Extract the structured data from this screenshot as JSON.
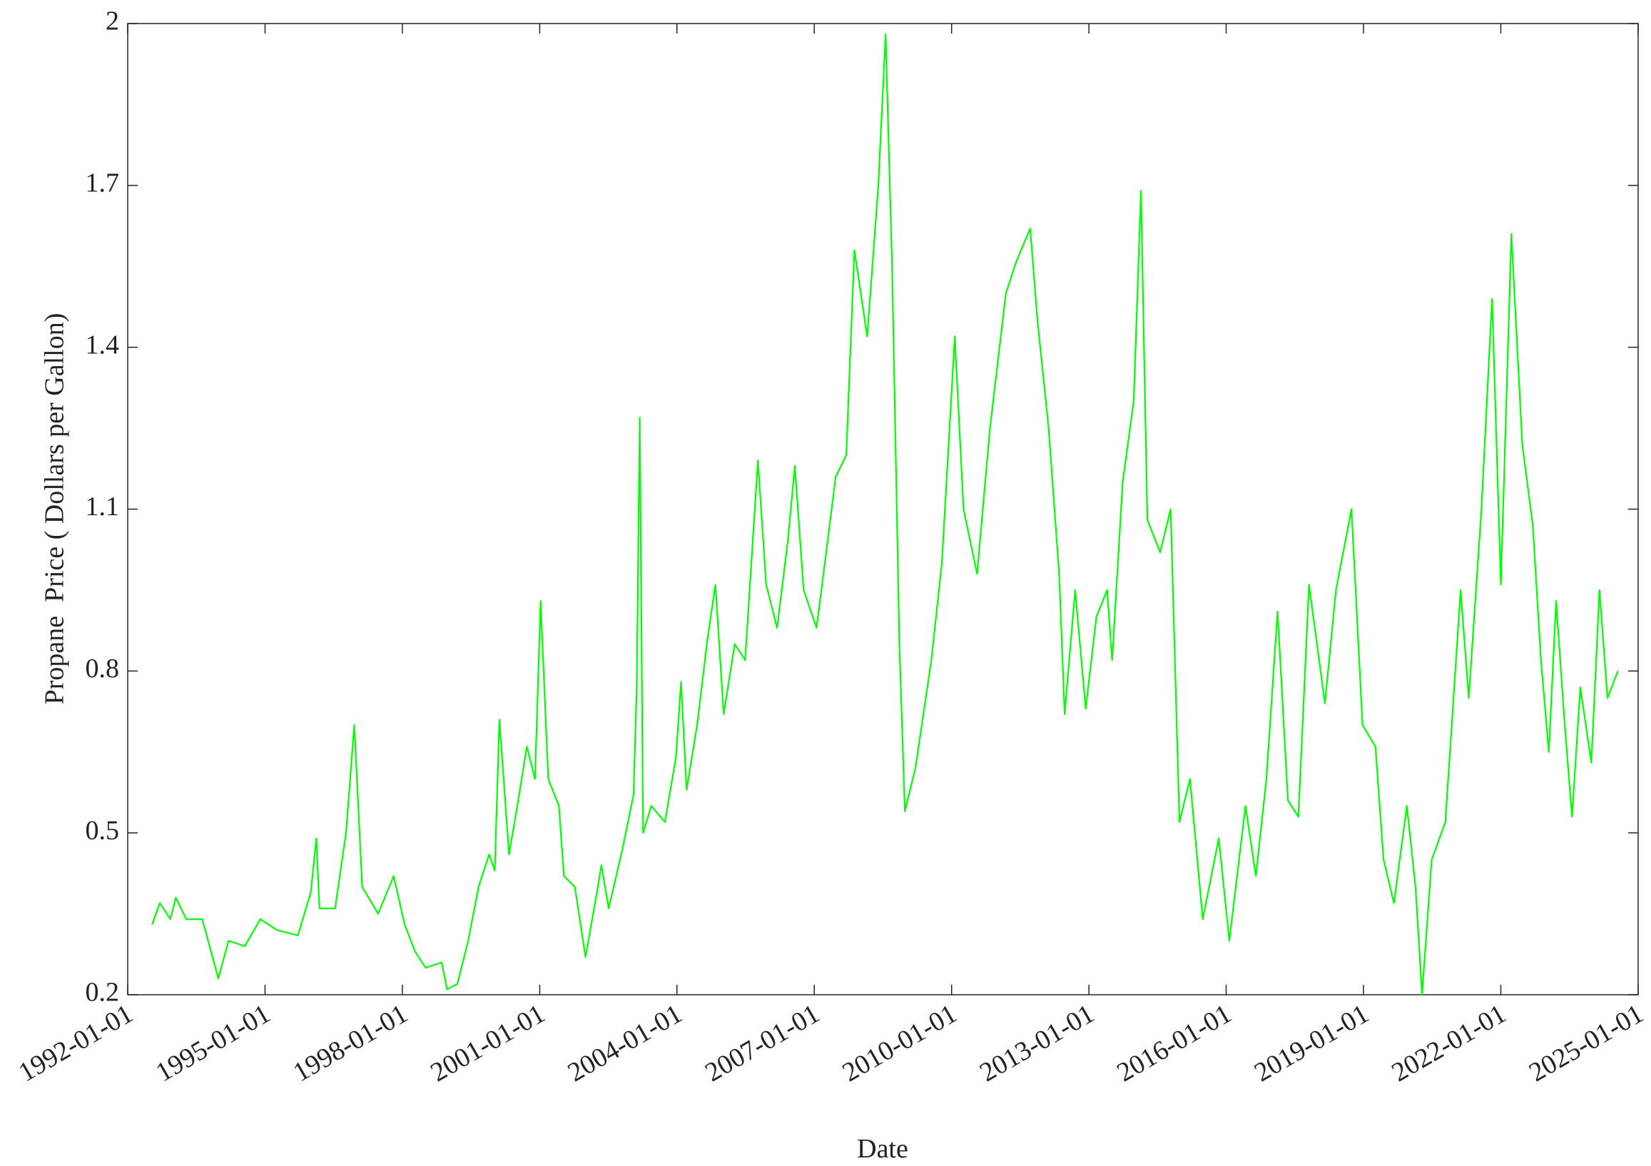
{
  "chart_data": {
    "type": "line",
    "x_label": "Date",
    "y_label": "Propane  Price ( Dollars per Gallon)",
    "color": "#00ff00",
    "xlim": [
      "1992-01-01",
      "2025-01-01"
    ],
    "xticks": [
      "1992-01-01",
      "1995-01-01",
      "1998-01-01",
      "2001-01-01",
      "2004-01-01",
      "2007-01-01",
      "2010-01-01",
      "2013-01-01",
      "2016-01-01",
      "2019-01-01",
      "2022-01-01",
      "2025-01-01"
    ],
    "ylim": [
      0.2,
      2
    ],
    "yticks": [
      0.2,
      0.5,
      0.8,
      1.1,
      1.4,
      1.7,
      2
    ],
    "x": [
      "1992-07-13",
      "1992-09-13",
      "1992-12-06",
      "1993-01-19",
      "1993-04-12",
      "1993-08-18",
      "1993-12-24",
      "1994-03-15",
      "1994-07-23",
      "1994-11-24",
      "1995-04-06",
      "1995-09-20",
      "1996-01-01",
      "1996-02-14",
      "1996-03-10",
      "1996-07-13",
      "1996-10-08",
      "1996-12-13",
      "1997-02-14",
      "1997-06-21",
      "1997-10-23",
      "1998-01-19",
      "1998-04-12",
      "1998-07-05",
      "1998-11-10",
      "1998-12-24",
      "1999-03-15",
      "1999-06-10",
      "1999-09-01",
      "1999-11-24",
      "2000-01-08",
      "2000-02-14",
      "2000-05-01",
      "2000-07-13",
      "2000-09-20",
      "2000-11-24",
      "2001-01-08",
      "2001-03-10",
      "2001-06-03",
      "2001-07-13",
      "2001-10-08",
      "2002-01-01",
      "2002-03-26",
      "2002-05-08",
      "2002-07-05",
      "2002-10-23",
      "2003-01-19",
      "2003-02-14",
      "2003-03-10",
      "2003-04-06",
      "2003-06-10",
      "2003-09-27",
      "2003-12-24",
      "2004-02-03",
      "2004-03-18",
      "2004-06-10",
      "2004-09-01",
      "2004-11-03",
      "2005-01-08",
      "2005-04-06",
      "2005-06-28",
      "2005-10-08",
      "2005-12-13",
      "2006-03-10",
      "2006-06-03",
      "2006-07-30",
      "2006-10-08",
      "2007-01-19",
      "2007-03-26",
      "2007-06-21",
      "2007-09-13",
      "2007-11-17",
      "2008-02-27",
      "2008-05-26",
      "2008-07-23",
      "2008-09-13",
      "2008-11-10",
      "2008-12-24",
      "2009-03-18",
      "2009-07-23",
      "2009-10-15",
      "2010-01-26",
      "2010-04-06",
      "2010-07-23",
      "2010-11-03",
      "2011-03-10",
      "2011-06-03",
      "2011-09-20",
      "2011-11-17",
      "2012-02-14",
      "2012-05-08",
      "2012-06-21",
      "2012-09-13",
      "2012-12-06",
      "2013-03-01",
      "2013-05-26",
      "2013-07-05",
      "2013-09-27",
      "2013-12-24",
      "2014-02-20",
      "2014-04-12",
      "2014-07-23",
      "2014-10-15",
      "2014-12-24",
      "2015-03-18",
      "2015-06-28",
      "2015-11-03",
      "2016-01-26",
      "2016-06-03",
      "2016-08-25",
      "2016-11-17",
      "2017-02-14",
      "2017-05-08",
      "2017-07-30",
      "2017-10-23",
      "2018-02-27",
      "2018-05-26",
      "2018-09-27",
      "2018-12-24",
      "2019-04-06",
      "2019-06-10",
      "2019-09-01",
      "2019-12-13",
      "2020-02-20",
      "2020-04-12",
      "2020-06-28",
      "2020-10-15",
      "2021-02-14",
      "2021-04-20",
      "2021-07-30",
      "2021-10-23",
      "2022-01-01",
      "2022-03-26",
      "2022-06-21",
      "2022-09-13",
      "2022-11-17",
      "2023-01-19",
      "2023-03-18",
      "2023-05-26",
      "2023-07-23",
      "2023-09-27",
      "2023-12-24",
      "2024-02-27",
      "2024-05-01",
      "2024-07-23"
    ],
    "values": [
      0.33,
      0.37,
      0.34,
      0.38,
      0.34,
      0.34,
      0.23,
      0.3,
      0.29,
      0.34,
      0.32,
      0.31,
      0.39,
      0.49,
      0.36,
      0.36,
      0.5,
      0.7,
      0.4,
      0.35,
      0.42,
      0.33,
      0.28,
      0.25,
      0.26,
      0.21,
      0.22,
      0.3,
      0.4,
      0.46,
      0.43,
      0.71,
      0.46,
      0.56,
      0.66,
      0.6,
      0.93,
      0.6,
      0.55,
      0.42,
      0.4,
      0.27,
      0.38,
      0.44,
      0.36,
      0.47,
      0.57,
      0.77,
      1.27,
      0.5,
      0.55,
      0.52,
      0.64,
      0.78,
      0.58,
      0.7,
      0.86,
      0.96,
      0.72,
      0.85,
      0.82,
      1.19,
      0.96,
      0.88,
      1.04,
      1.18,
      0.95,
      0.88,
      1.0,
      1.16,
      1.2,
      1.58,
      1.42,
      1.7,
      1.98,
      1.55,
      0.85,
      0.54,
      0.62,
      0.82,
      1.0,
      1.42,
      1.1,
      0.98,
      1.25,
      1.5,
      1.56,
      1.62,
      1.45,
      1.25,
      0.98,
      0.72,
      0.95,
      0.73,
      0.9,
      0.95,
      0.82,
      1.15,
      1.3,
      1.69,
      1.08,
      1.02,
      1.1,
      0.52,
      0.6,
      0.34,
      0.49,
      0.3,
      0.55,
      0.42,
      0.6,
      0.91,
      0.56,
      0.53,
      0.96,
      0.74,
      0.95,
      1.1,
      0.7,
      0.66,
      0.45,
      0.37,
      0.55,
      0.4,
      0.2,
      0.45,
      0.52,
      0.95,
      0.75,
      1.1,
      1.49,
      0.96,
      1.61,
      1.22,
      1.07,
      0.82,
      0.65,
      0.93,
      0.7,
      0.53,
      0.77,
      0.63,
      0.95,
      0.75,
      0.8
    ]
  }
}
